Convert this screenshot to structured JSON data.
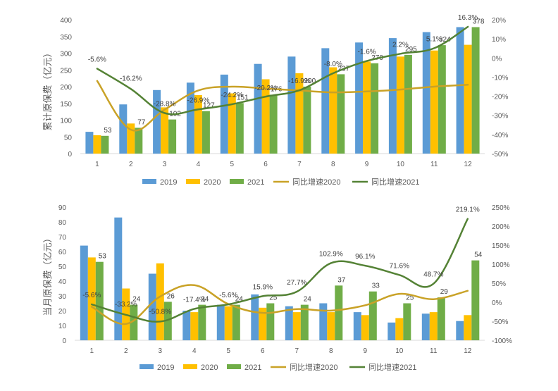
{
  "chart_data": [
    {
      "type": "bar",
      "categories": [
        "1",
        "2",
        "3",
        "4",
        "5",
        "6",
        "7",
        "8",
        "9",
        "10",
        "11",
        "12"
      ],
      "ylabel": "累计原保费（亿元）",
      "ylim": [
        0,
        400
      ],
      "yticks": [
        "0",
        "50",
        "100",
        "150",
        "200",
        "250",
        "300",
        "350",
        "400"
      ],
      "y2lim": [
        -50,
        20
      ],
      "y2ticks": [
        "-50%",
        "-40%",
        "-30%",
        "-20%",
        "-10%",
        "0%",
        "10%",
        "20%"
      ],
      "grid": false,
      "legend_position": "bottom",
      "series": [
        {
          "name": "2019",
          "kind": "bar",
          "color": "#5B9BD5",
          "values": [
            65,
            147,
            190,
            212,
            236,
            268,
            290,
            315,
            332,
            345,
            363,
            378
          ]
        },
        {
          "name": "2020",
          "kind": "bar",
          "color": "#FFC000",
          "values": [
            55,
            90,
            138,
            175,
            180,
            222,
            240,
            258,
            275,
            290,
            308,
            325
          ]
        },
        {
          "name": "2021",
          "kind": "bar",
          "color": "#70AD47",
          "values": [
            53,
            77,
            102,
            127,
            151,
            176,
            200,
            237,
            270,
            295,
            324,
            378
          ]
        },
        {
          "name": "同比增速2020",
          "kind": "line",
          "axis": "right",
          "color": "#C9A227",
          "values": [
            -12.0,
            -37.5,
            -27.0,
            -17.0,
            -15.0,
            -16.0,
            -17.0,
            -18.0,
            -17.5,
            -16.5,
            -15.0,
            -14.0
          ]
        },
        {
          "name": "同比增速2021",
          "kind": "line",
          "axis": "right",
          "color": "#548235",
          "values": [
            -5.6,
            -16.2,
            -28.8,
            -26.9,
            -24.2,
            -20.2,
            -16.9,
            -8.0,
            -1.6,
            2.2,
            5.1,
            16.3
          ]
        }
      ],
      "bar_labels": [
        "53",
        "77",
        "102",
        "127",
        "151",
        "176",
        "200",
        "237",
        "270",
        "295",
        "324",
        "378"
      ],
      "line_labels": [
        "-5.6%",
        "-16.2%",
        "-28.8%",
        "-26.9%",
        "-24.2%",
        "-20.2%",
        "-16.9%",
        "-8.0%",
        "-1.6%",
        "2.2%",
        "5.1%",
        "16.3%"
      ]
    },
    {
      "type": "bar",
      "categories": [
        "1",
        "2",
        "3",
        "4",
        "5",
        "6",
        "7",
        "8",
        "9",
        "10",
        "11",
        "12"
      ],
      "ylabel": "当月原保费（亿元）",
      "ylim": [
        0,
        90
      ],
      "yticks": [
        "0",
        "10",
        "20",
        "30",
        "40",
        "50",
        "60",
        "70",
        "80",
        "90"
      ],
      "y2lim": [
        -100,
        250
      ],
      "y2ticks": [
        "-100%",
        "-50%",
        "0%",
        "50%",
        "100%",
        "150%",
        "200%",
        "250%"
      ],
      "grid": false,
      "legend_position": "bottom",
      "series": [
        {
          "name": "2019",
          "kind": "bar",
          "color": "#5B9BD5",
          "values": [
            64,
            83,
            45,
            20,
            24,
            31,
            23,
            25,
            19,
            12,
            18,
            13
          ]
        },
        {
          "name": "2020",
          "kind": "bar",
          "color": "#FFC000",
          "values": [
            56,
            35,
            52,
            19,
            23,
            22,
            19,
            19,
            17,
            15,
            19,
            17
          ]
        },
        {
          "name": "2021",
          "kind": "bar",
          "color": "#70AD47",
          "values": [
            53,
            24,
            26,
            24,
            24,
            25,
            24,
            37,
            33,
            25,
            29,
            54
          ]
        },
        {
          "name": "同比增速2020",
          "kind": "line",
          "axis": "right",
          "color": "#C9A227",
          "values": [
            -12,
            -57,
            15,
            45,
            -5,
            -28,
            -18,
            -22,
            -8,
            22,
            8,
            30
          ]
        },
        {
          "name": "同比增速2021",
          "kind": "line",
          "axis": "right",
          "color": "#548235",
          "values": [
            -5.6,
            -33.2,
            -50.8,
            -17.4,
            -5.6,
            15.9,
            27.7,
            102.9,
            96.1,
            71.6,
            48.7,
            219.1
          ]
        }
      ],
      "bar_labels": [
        "53",
        "24",
        "26",
        "24",
        "24",
        "25",
        "24",
        "37",
        "33",
        "25",
        "29",
        "54"
      ],
      "line_labels": [
        "-5.6%",
        "-33.2%",
        "-50.8%",
        "-17.4%",
        "-5.6%",
        "15.9%",
        "27.7%",
        "102.9%",
        "96.1%",
        "71.6%",
        "48.7%",
        "219.1%"
      ]
    }
  ]
}
